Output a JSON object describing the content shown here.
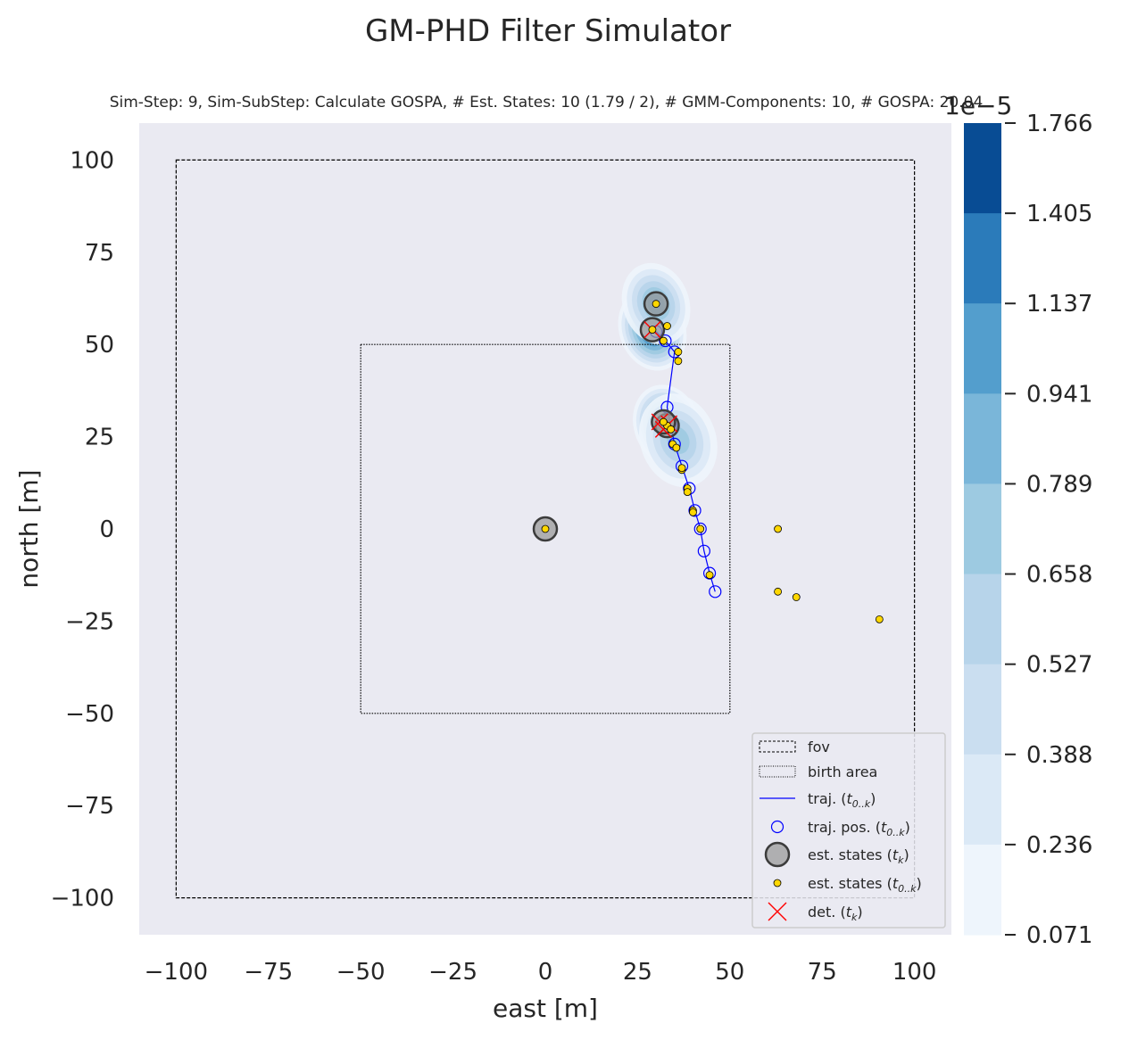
{
  "title": "GM-PHD Filter Simulator",
  "subtitle": "Sim-Step: 9, Sim-SubStep: Calculate GOSPA, # Est. States: 10 (1.79 / 2), # GMM-Components: 10, # GOSPA: 20.04",
  "chart_data": {
    "type": "scatter",
    "xlabel": "east [m]",
    "ylabel": "north [m]",
    "xlim": [
      -110,
      110
    ],
    "ylim": [
      -110,
      110
    ],
    "grid": false,
    "x_ticks": [
      "−100",
      "−75",
      "−50",
      "−25",
      "0",
      "25",
      "50",
      "75",
      "100"
    ],
    "y_ticks": [
      "−100",
      "−75",
      "−50",
      "−25",
      "0",
      "25",
      "50",
      "75",
      "100"
    ],
    "fov": {
      "x": [
        -100,
        100
      ],
      "y": [
        -100,
        100
      ]
    },
    "birth_area": {
      "x": [
        -50,
        50
      ],
      "y": [
        -50,
        50
      ]
    },
    "trajectory": [
      [
        46,
        -17
      ],
      [
        44.5,
        -12
      ],
      [
        43,
        -6
      ],
      [
        42,
        0
      ],
      [
        40.5,
        5
      ],
      [
        39,
        11
      ],
      [
        37,
        17
      ],
      [
        35,
        23
      ],
      [
        34,
        28
      ],
      [
        33,
        33
      ],
      [
        35,
        48
      ],
      [
        32.5,
        51
      ],
      [
        30,
        53.5
      ]
    ],
    "est_states_tk": [
      [
        0,
        0
      ],
      [
        33,
        28
      ],
      [
        32,
        29
      ],
      [
        29,
        54
      ],
      [
        30,
        61
      ]
    ],
    "est_states_hist": [
      [
        30,
        61
      ],
      [
        33,
        55
      ],
      [
        29,
        54
      ],
      [
        32,
        51
      ],
      [
        36,
        48
      ],
      [
        36,
        45.5
      ],
      [
        33,
        28
      ],
      [
        34,
        27
      ],
      [
        32,
        29
      ],
      [
        34.5,
        23
      ],
      [
        35.5,
        22
      ],
      [
        37,
        16
      ],
      [
        37,
        16.5
      ],
      [
        38.5,
        11
      ],
      [
        38.5,
        10
      ],
      [
        40,
        5
      ],
      [
        40,
        4.5
      ],
      [
        42,
        0
      ],
      [
        44.5,
        -12.5
      ],
      [
        0,
        0
      ],
      [
        63,
        0
      ],
      [
        63,
        -17
      ],
      [
        68,
        -18.5
      ],
      [
        90.5,
        -24.5
      ]
    ],
    "detections_tk": [
      [
        29,
        54
      ],
      [
        31,
        29
      ],
      [
        32,
        27
      ],
      [
        33.5,
        28.5
      ]
    ],
    "phd_intensity_components": [
      {
        "mean": [
          29,
          54
        ],
        "weight": 1.0,
        "sigma": 3.5
      },
      {
        "mean": [
          30,
          61
        ],
        "weight": 0.7,
        "sigma": 3.5
      },
      {
        "mean": [
          33,
          28
        ],
        "weight": 1.0,
        "sigma": 3.5
      },
      {
        "mean": [
          36,
          24
        ],
        "weight": 0.6,
        "sigma": 4.0
      }
    ],
    "colorbar": {
      "exponent": "1e−5",
      "ticks": [
        "1.766",
        "1.405",
        "1.137",
        "0.941",
        "0.789",
        "0.658",
        "0.527",
        "0.388",
        "0.236",
        "0.071"
      ],
      "colors": [
        "#084c94",
        "#2b7bba",
        "#539ecd",
        "#7ab6d9",
        "#9dcae1",
        "#b7d4ea",
        "#cadef0",
        "#dbe9f6",
        "#eef5fc"
      ]
    },
    "legend": {
      "placement": "lower-right",
      "entries": [
        {
          "key": "fov",
          "label": "fov"
        },
        {
          "key": "birth",
          "label": "birth area"
        },
        {
          "key": "traj",
          "label": "traj. (",
          "sub": "0..k"
        },
        {
          "key": "traj_pos",
          "label": "traj. pos. (",
          "sub": "0..k"
        },
        {
          "key": "est_tk",
          "label": "est. states (",
          "sub": "k"
        },
        {
          "key": "est_hist",
          "label": "est. states (",
          "sub": "0..k"
        },
        {
          "key": "det",
          "label": "det. (",
          "sub": "k"
        }
      ]
    }
  }
}
